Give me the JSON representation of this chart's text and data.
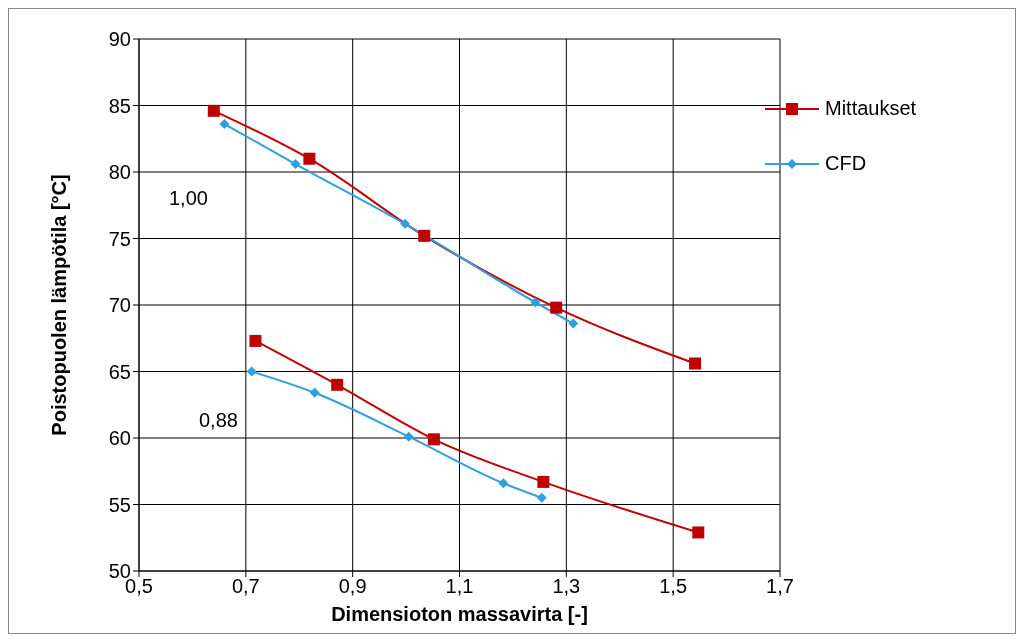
{
  "chart_data": {
    "type": "line",
    "xlabel": "Dimensioton massavirta [-]",
    "ylabel": "Poistopuolen lämpötila [°C]",
    "xlim": [
      0.5,
      1.7
    ],
    "xticks": [
      {
        "value": 0.5,
        "label": "0,5"
      },
      {
        "value": 0.7,
        "label": "0,7"
      },
      {
        "value": 0.9,
        "label": "0,9"
      },
      {
        "value": 1.1,
        "label": "1,1"
      },
      {
        "value": 1.3,
        "label": "1,3"
      },
      {
        "value": 1.5,
        "label": "1,5"
      },
      {
        "value": 1.7,
        "label": "1,7"
      }
    ],
    "ylim": [
      50,
      90
    ],
    "yticks": [
      50,
      55,
      60,
      65,
      70,
      75,
      80,
      85,
      90
    ],
    "grid": true,
    "legend": "top right",
    "series": [
      {
        "name": "Mittaukset",
        "color": "#c00000",
        "marker": "square",
        "x": [
          0.64,
          0.819,
          1.034,
          1.281,
          1.541
        ],
        "values": [
          84.6,
          81.0,
          75.2,
          69.8,
          65.6
        ]
      },
      {
        "name": "CFD",
        "color": "#2f9fe0",
        "marker": "diamond",
        "x": [
          0.66,
          0.793,
          0.998,
          1.242,
          1.313
        ],
        "values": [
          83.6,
          80.6,
          76.1,
          70.2,
          68.6
        ]
      },
      {
        "color": "#c00000",
        "marker": "square",
        "x": [
          0.718,
          0.871,
          1.052,
          1.257,
          1.547
        ],
        "values": [
          67.3,
          64.0,
          59.9,
          56.7,
          52.9
        ]
      },
      {
        "color": "#2f9fe0",
        "marker": "diamond",
        "x": [
          0.711,
          0.829,
          1.005,
          1.182,
          1.254
        ],
        "values": [
          65.0,
          63.4,
          60.1,
          56.6,
          55.5
        ]
      }
    ],
    "annotations": [
      "1,00",
      "0,88"
    ]
  }
}
